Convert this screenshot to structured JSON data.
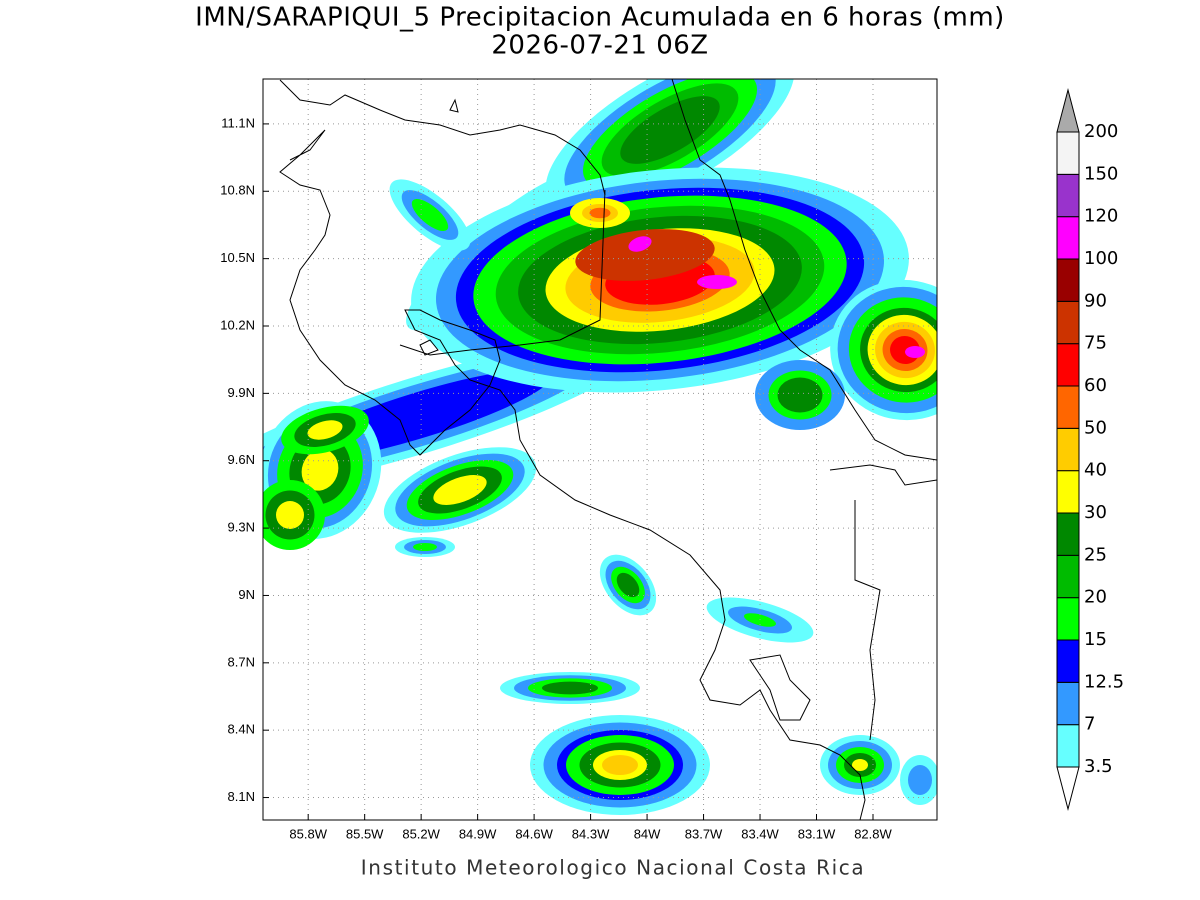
{
  "title": "IMN/SARAPIQUI_5 Precipitacion Acumulada en 6 horas (mm)",
  "subtitle": "2026-07-21 06Z",
  "footer": "Instituto Meteorologico Nacional Costa Rica",
  "map": {
    "xlim": [
      -86.04,
      -82.46
    ],
    "ylim": [
      8.0,
      11.3
    ],
    "grid": true,
    "xticks": [
      {
        "value": -85.8,
        "label": "85.8W"
      },
      {
        "value": -85.5,
        "label": "85.5W"
      },
      {
        "value": -85.2,
        "label": "85.2W"
      },
      {
        "value": -84.9,
        "label": "84.9W"
      },
      {
        "value": -84.6,
        "label": "84.6W"
      },
      {
        "value": -84.3,
        "label": "84.3W"
      },
      {
        "value": -84,
        "label": "84W"
      },
      {
        "value": -83.7,
        "label": "83.7W"
      },
      {
        "value": -83.4,
        "label": "83.4W"
      },
      {
        "value": -83.1,
        "label": "83.1W"
      },
      {
        "value": -82.8,
        "label": "82.8W"
      }
    ],
    "yticks": [
      {
        "value": 8.1,
        "label": "8.1N"
      },
      {
        "value": 8.4,
        "label": "8.4N"
      },
      {
        "value": 8.7,
        "label": "8.7N"
      },
      {
        "value": 9,
        "label": "9N"
      },
      {
        "value": 9.3,
        "label": "9.3N"
      },
      {
        "value": 9.6,
        "label": "9.6N"
      },
      {
        "value": 9.9,
        "label": "9.9N"
      },
      {
        "value": 10.2,
        "label": "10.2N"
      },
      {
        "value": 10.5,
        "label": "10.5N"
      },
      {
        "value": 10.8,
        "label": "10.8N"
      },
      {
        "value": 11.1,
        "label": "11.1N"
      }
    ]
  },
  "colorbar": {
    "levels": [
      3.5,
      7,
      12.5,
      15,
      20,
      25,
      30,
      40,
      50,
      60,
      75,
      90,
      100,
      120,
      150,
      200
    ],
    "colors": [
      "#ffffff",
      "#66ffff",
      "#3399ff",
      "#0000ff",
      "#00ff00",
      "#00bb00",
      "#008800",
      "#ffff00",
      "#ffcc00",
      "#ff6600",
      "#ff0000",
      "#cc3300",
      "#990000",
      "#ff00ff",
      "#9933cc",
      "#f4f4f4",
      "#aaaaaa"
    ]
  }
}
